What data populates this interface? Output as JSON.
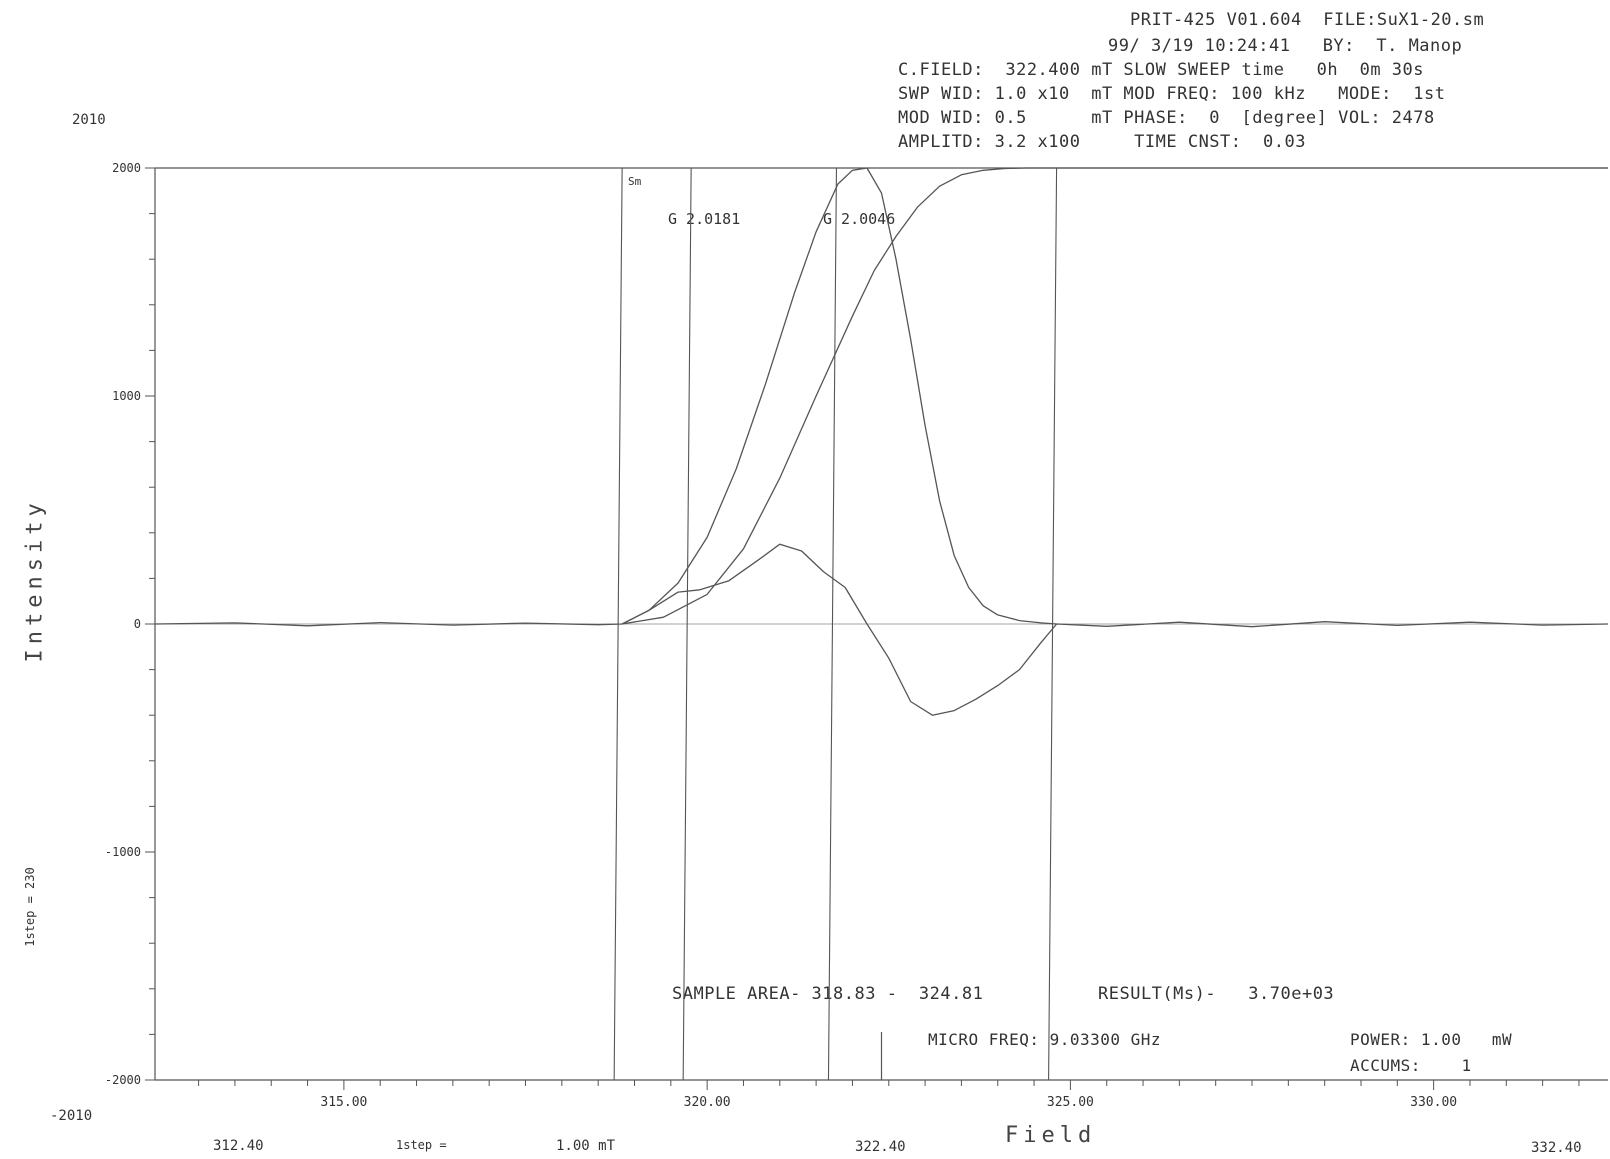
{
  "header": {
    "line1": "PRIT-425 V01.604  FILE:SuX1-20.sm",
    "line2": "99/ 3/19 10:24:41   BY:  T. Manop",
    "line3": "C.FIELD:  322.400 mT SLOW SWEEP time   0h  0m 30s",
    "line4": "SWP WID: 1.0 x10  mT MOD FREQ: 100 kHz   MODE:  1st",
    "line5": "MOD WID: 0.5      mT PHASE:  0  [degree] VOL: 2478",
    "line6": "AMPLITD: 3.2 x100     TIME CNST:  0.03"
  },
  "margin_labels": {
    "top_left": "2010",
    "bottom_left": "-2010",
    "side_step": "1step = 230",
    "bottom_start": "312.40",
    "bottom_step": "1step =",
    "bottom_step_value": "1.00 mT",
    "bottom_center": "322.40",
    "bottom_end": "332.40"
  },
  "annotations": {
    "sm": "Sm",
    "g1": "G 2.0181",
    "g2": "G 2.0046",
    "sample_area": "SAMPLE AREA- 318.83 -  324.81",
    "result": "RESULT(Ms)-   3.70e+03",
    "micro_freq": "MICRO FREQ: 9.03300 GHz",
    "power": "POWER: 1.00   mW",
    "accums": "ACCUMS:    1"
  },
  "chart_data": {
    "type": "line",
    "xlabel": "Field",
    "ylabel": "Intensity",
    "xlim": [
      312.4,
      332.4
    ],
    "ylim": [
      -2000,
      2000
    ],
    "x_ticks": [
      315.0,
      320.0,
      325.0,
      330.0
    ],
    "x_tick_labels": [
      "315.00",
      "320.00",
      "325.00",
      "330.00"
    ],
    "y_ticks": [
      2000,
      1000,
      0,
      -1000,
      -2000
    ],
    "y_tick_labels": [
      "2000",
      "1000",
      "0",
      "-1000",
      "-2000"
    ],
    "vertical_markers": [
      318.83,
      319.78,
      321.78,
      324.81
    ],
    "g_marker_positions": [
      319.78,
      321.78
    ],
    "center_tick_x": 322.4,
    "series": [
      {
        "role": "first-derivative spectrum",
        "x": [
          312.4,
          313.5,
          314.5,
          315.5,
          316.5,
          317.5,
          318.5,
          318.83,
          319.2,
          319.6,
          319.9,
          320.3,
          320.7,
          321.0,
          321.3,
          321.6,
          321.9,
          322.2,
          322.5,
          322.8,
          323.1,
          323.4,
          323.7,
          324.0,
          324.3,
          324.6,
          324.81,
          325.5,
          326.5,
          327.5,
          328.5,
          329.5,
          330.5,
          331.5,
          332.4
        ],
        "y": [
          0,
          5,
          -8,
          6,
          -5,
          4,
          -3,
          0,
          60,
          140,
          150,
          190,
          280,
          350,
          320,
          230,
          160,
          0,
          -150,
          -340,
          -400,
          -380,
          -330,
          -270,
          -200,
          -80,
          0,
          -10,
          8,
          -12,
          10,
          -6,
          8,
          -5,
          0
        ]
      },
      {
        "role": "first integral (absorption)",
        "x": [
          318.83,
          319.2,
          319.6,
          320.0,
          320.4,
          320.8,
          321.2,
          321.5,
          321.8,
          322.0,
          322.2,
          322.4,
          322.6,
          322.8,
          323.0,
          323.2,
          323.4,
          323.6,
          323.8,
          324.0,
          324.3,
          324.6,
          324.81
        ],
        "y": [
          0,
          60,
          180,
          380,
          680,
          1050,
          1450,
          1720,
          1930,
          1990,
          2000,
          1890,
          1600,
          1250,
          870,
          540,
          300,
          160,
          80,
          40,
          15,
          5,
          0
        ]
      },
      {
        "role": "second integral (area)",
        "x": [
          318.83,
          319.4,
          320.0,
          320.5,
          321.0,
          321.5,
          322.0,
          322.3,
          322.6,
          322.9,
          323.2,
          323.5,
          323.8,
          324.1,
          324.4,
          324.81,
          325.5,
          326.5,
          327.5,
          328.5,
          329.5,
          330.5,
          331.5,
          332.4
        ],
        "y": [
          0,
          30,
          130,
          330,
          640,
          1000,
          1350,
          1550,
          1700,
          1830,
          1920,
          1970,
          1990,
          1998,
          2000,
          2000,
          2000,
          2000,
          2000,
          2000,
          2000,
          2000,
          2000,
          2000
        ]
      }
    ]
  }
}
